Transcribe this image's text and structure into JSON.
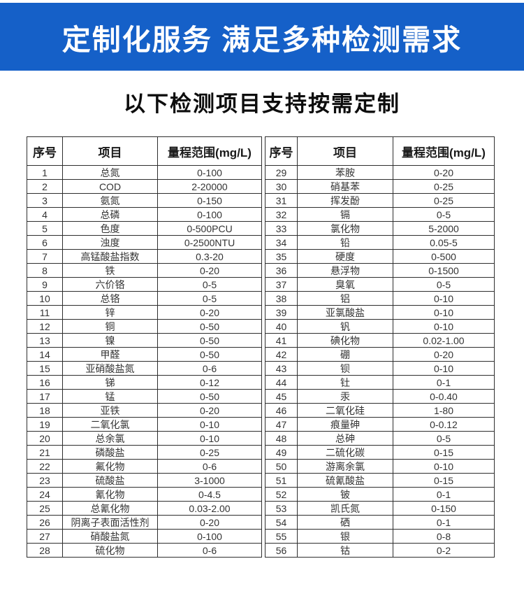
{
  "banner": {
    "title": "定制化服务 满足多种检测需求",
    "background_color": "#1560c8",
    "text_color": "#ffffff"
  },
  "subtitle": "以下检测项目支持按需定制",
  "table": {
    "headers": [
      "序号",
      "项目",
      "量程范围(mg/L)"
    ],
    "left_rows": [
      {
        "no": "1",
        "item": "总氮",
        "range": "0-100"
      },
      {
        "no": "2",
        "item": "COD",
        "range": "2-20000"
      },
      {
        "no": "3",
        "item": "氨氮",
        "range": "0-150"
      },
      {
        "no": "4",
        "item": "总磷",
        "range": "0-100"
      },
      {
        "no": "5",
        "item": "色度",
        "range": "0-500PCU"
      },
      {
        "no": "6",
        "item": "浊度",
        "range": "0-2500NTU"
      },
      {
        "no": "7",
        "item": "高锰酸盐指数",
        "range": "0.3-20"
      },
      {
        "no": "8",
        "item": "铁",
        "range": "0-20"
      },
      {
        "no": "9",
        "item": "六价铬",
        "range": "0-5"
      },
      {
        "no": "10",
        "item": "总铬",
        "range": "0-5"
      },
      {
        "no": "11",
        "item": "锌",
        "range": "0-20"
      },
      {
        "no": "12",
        "item": "铜",
        "range": "0-50"
      },
      {
        "no": "13",
        "item": "镍",
        "range": "0-50"
      },
      {
        "no": "14",
        "item": "甲醛",
        "range": "0-50"
      },
      {
        "no": "15",
        "item": "亚硝酸盐氮",
        "range": "0-6"
      },
      {
        "no": "16",
        "item": "锑",
        "range": "0-12"
      },
      {
        "no": "17",
        "item": "锰",
        "range": "0-50"
      },
      {
        "no": "18",
        "item": "亚铁",
        "range": "0-20"
      },
      {
        "no": "19",
        "item": "二氧化氯",
        "range": "0-10"
      },
      {
        "no": "20",
        "item": "总余氯",
        "range": "0-10"
      },
      {
        "no": "21",
        "item": "磷酸盐",
        "range": "0-25"
      },
      {
        "no": "22",
        "item": "氟化物",
        "range": "0-6"
      },
      {
        "no": "23",
        "item": "硫酸盐",
        "range": "3-1000"
      },
      {
        "no": "24",
        "item": "氰化物",
        "range": "0-4.5"
      },
      {
        "no": "25",
        "item": "总氰化物",
        "range": "0.03-2.00"
      },
      {
        "no": "26",
        "item": "阴离子表面活性剂",
        "range": "0-20"
      },
      {
        "no": "27",
        "item": "硝酸盐氮",
        "range": "0-100"
      },
      {
        "no": "28",
        "item": "硫化物",
        "range": "0-6"
      }
    ],
    "right_rows": [
      {
        "no": "29",
        "item": "苯胺",
        "range": "0-20"
      },
      {
        "no": "30",
        "item": "硝基苯",
        "range": "0-25"
      },
      {
        "no": "31",
        "item": "挥发酚",
        "range": "0-25"
      },
      {
        "no": "32",
        "item": "镉",
        "range": "0-5"
      },
      {
        "no": "33",
        "item": "氯化物",
        "range": "5-2000"
      },
      {
        "no": "34",
        "item": "铅",
        "range": "0.05-5"
      },
      {
        "no": "35",
        "item": "硬度",
        "range": "0-500"
      },
      {
        "no": "36",
        "item": "悬浮物",
        "range": "0-1500"
      },
      {
        "no": "37",
        "item": "臭氧",
        "range": "0-5"
      },
      {
        "no": "38",
        "item": "铝",
        "range": "0-10"
      },
      {
        "no": "39",
        "item": "亚氯酸盐",
        "range": "0-10"
      },
      {
        "no": "40",
        "item": "钒",
        "range": "0-10"
      },
      {
        "no": "41",
        "item": "碘化物",
        "range": "0.02-1.00"
      },
      {
        "no": "42",
        "item": "硼",
        "range": "0-20"
      },
      {
        "no": "43",
        "item": "钡",
        "range": "0-10"
      },
      {
        "no": "44",
        "item": "钍",
        "range": "0-1"
      },
      {
        "no": "45",
        "item": "汞",
        "range": "0-0.40"
      },
      {
        "no": "46",
        "item": "二氧化硅",
        "range": "1-80"
      },
      {
        "no": "47",
        "item": "痕量砷",
        "range": "0-0.12"
      },
      {
        "no": "48",
        "item": "总砷",
        "range": "0-5"
      },
      {
        "no": "49",
        "item": "二硫化碳",
        "range": "0-15"
      },
      {
        "no": "50",
        "item": "游离余氯",
        "range": "0-10"
      },
      {
        "no": "51",
        "item": "硫氰酸盐",
        "range": "0-15"
      },
      {
        "no": "52",
        "item": "铍",
        "range": "0-1"
      },
      {
        "no": "53",
        "item": "凯氏氮",
        "range": "0-150"
      },
      {
        "no": "54",
        "item": "硒",
        "range": "0-1"
      },
      {
        "no": "55",
        "item": "银",
        "range": "0-8"
      },
      {
        "no": "56",
        "item": "钴",
        "range": "0-2"
      }
    ]
  }
}
